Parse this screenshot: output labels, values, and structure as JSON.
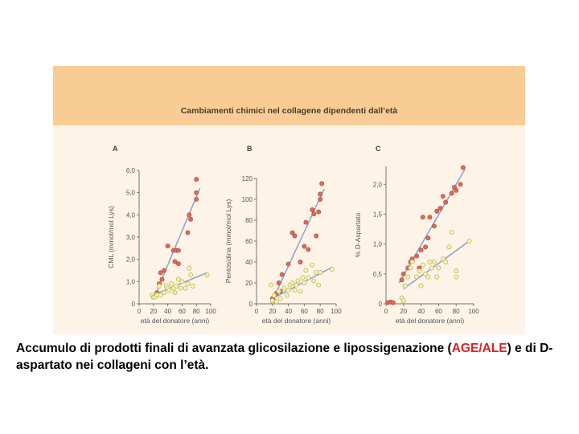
{
  "figure": {
    "title": "Cambiamenti chimici nel collagene dipendenti dall’età",
    "colors": {
      "title_bar": "#f8cc94",
      "panel_bg": "#fdf3e6",
      "red_points": "#e06a58",
      "yellow_points": "#f4f3b0",
      "trend_lines": "#8ea6d6"
    }
  },
  "chart_data": [
    {
      "type": "scatter",
      "panel": "A",
      "ylabel": "CML (mmol/mol Lys)",
      "xlabel": "età del donatore (anni)",
      "xlim": [
        0,
        100
      ],
      "ylim": [
        0,
        6.0
      ],
      "xticks": [
        0,
        20,
        40,
        60,
        80,
        100
      ],
      "yticks": [
        0,
        1.0,
        2.0,
        3.0,
        4.0,
        5.0,
        6.0
      ],
      "ytick_labels": [
        "0",
        "1,0",
        "2,0",
        "3,0",
        "4,0",
        "5,0",
        "6,0"
      ],
      "series": [
        {
          "color": "red",
          "points": [
            [
              20,
              0.3
            ],
            [
              25,
              0.5
            ],
            [
              28,
              0.9
            ],
            [
              30,
              1.4
            ],
            [
              32,
              1.1
            ],
            [
              35,
              1.5
            ],
            [
              40,
              2.6
            ],
            [
              48,
              2.4
            ],
            [
              50,
              1.9
            ],
            [
              52,
              2.4
            ],
            [
              55,
              2.4
            ],
            [
              55,
              1.8
            ],
            [
              68,
              3.2
            ],
            [
              70,
              4.0
            ],
            [
              72,
              3.8
            ],
            [
              80,
              5.6
            ],
            [
              80,
              4.7
            ],
            [
              80,
              5.0
            ]
          ]
        },
        {
          "color": "yellow",
          "points": [
            [
              18,
              0.4
            ],
            [
              20,
              0.3
            ],
            [
              22,
              0.3
            ],
            [
              25,
              0.4
            ],
            [
              28,
              0.8
            ],
            [
              30,
              0.4
            ],
            [
              35,
              0.5
            ],
            [
              38,
              0.8
            ],
            [
              40,
              0.7
            ],
            [
              42,
              0.6
            ],
            [
              45,
              0.9
            ],
            [
              48,
              0.7
            ],
            [
              50,
              0.5
            ],
            [
              52,
              0.8
            ],
            [
              55,
              1.1
            ],
            [
              58,
              0.7
            ],
            [
              60,
              1.0
            ],
            [
              65,
              0.7
            ],
            [
              68,
              0.9
            ],
            [
              70,
              1.6
            ],
            [
              72,
              1.3
            ],
            [
              75,
              0.8
            ],
            [
              95,
              1.3
            ]
          ]
        }
      ],
      "trend_lines": [
        {
          "color": "red",
          "from": [
            20,
            0.2
          ],
          "to": [
            85,
            5.2
          ]
        },
        {
          "color": "yellow",
          "from": [
            20,
            0.4
          ],
          "to": [
            95,
            1.4
          ]
        }
      ]
    },
    {
      "type": "scatter",
      "panel": "B",
      "ylabel": "Pentosidina (mmol/mol Lys)",
      "xlabel": "età del donatore (anni)",
      "xlim": [
        0,
        100
      ],
      "ylim": [
        0,
        120
      ],
      "xticks": [
        0,
        20,
        40,
        60,
        80,
        100
      ],
      "yticks": [
        0,
        20,
        40,
        60,
        80,
        100,
        120
      ],
      "ytick_labels": [
        "0",
        "20",
        "40",
        "60",
        "80",
        "100",
        "120"
      ],
      "series": [
        {
          "color": "red",
          "points": [
            [
              20,
              5
            ],
            [
              22,
              3
            ],
            [
              25,
              10
            ],
            [
              28,
              20
            ],
            [
              30,
              12
            ],
            [
              32,
              28
            ],
            [
              40,
              38
            ],
            [
              45,
              68
            ],
            [
              48,
              65
            ],
            [
              55,
              40
            ],
            [
              60,
              55
            ],
            [
              62,
              78
            ],
            [
              65,
              52
            ],
            [
              70,
              90
            ],
            [
              72,
              86
            ],
            [
              75,
              65
            ],
            [
              78,
              88
            ],
            [
              80,
              100
            ],
            [
              80,
              105
            ],
            [
              82,
              115
            ]
          ]
        },
        {
          "color": "yellow",
          "points": [
            [
              18,
              18
            ],
            [
              20,
              3
            ],
            [
              22,
              8
            ],
            [
              25,
              2
            ],
            [
              28,
              12
            ],
            [
              30,
              5
            ],
            [
              35,
              15
            ],
            [
              38,
              8
            ],
            [
              40,
              13
            ],
            [
              42,
              18
            ],
            [
              45,
              20
            ],
            [
              48,
              13
            ],
            [
              50,
              18
            ],
            [
              52,
              22
            ],
            [
              55,
              12
            ],
            [
              58,
              25
            ],
            [
              60,
              20
            ],
            [
              62,
              32
            ],
            [
              65,
              25
            ],
            [
              70,
              37
            ],
            [
              72,
              22
            ],
            [
              75,
              30
            ],
            [
              78,
              18
            ],
            [
              80,
              30
            ],
            [
              95,
              33
            ]
          ]
        }
      ],
      "trend_lines": [
        {
          "color": "red",
          "from": [
            18,
            0
          ],
          "to": [
            85,
            110
          ]
        },
        {
          "color": "yellow",
          "from": [
            20,
            5
          ],
          "to": [
            95,
            35
          ]
        }
      ]
    },
    {
      "type": "scatter",
      "panel": "C",
      "ylabel": "% D-Aspartato",
      "xlabel": "età del donatore (anni)",
      "xlim": [
        0,
        100
      ],
      "ylim": [
        0,
        2.3
      ],
      "xticks": [
        0,
        20,
        40,
        60,
        80,
        100
      ],
      "yticks": [
        0,
        0.5,
        1.0,
        1.5,
        2.0
      ],
      "ytick_labels": [
        "0",
        "0,5",
        "1,0",
        "1,5",
        "2,0"
      ],
      "series": [
        {
          "color": "red",
          "points": [
            [
              2,
              0.02
            ],
            [
              5,
              0.03
            ],
            [
              8,
              0.02
            ],
            [
              18,
              0.4
            ],
            [
              20,
              0.5
            ],
            [
              25,
              0.6
            ],
            [
              28,
              0.7
            ],
            [
              30,
              0.75
            ],
            [
              35,
              0.8
            ],
            [
              38,
              0.6
            ],
            [
              40,
              0.9
            ],
            [
              42,
              1.45
            ],
            [
              45,
              0.95
            ],
            [
              48,
              1.1
            ],
            [
              50,
              1.45
            ],
            [
              55,
              1.3
            ],
            [
              58,
              1.55
            ],
            [
              62,
              1.6
            ],
            [
              65,
              1.8
            ],
            [
              68,
              1.7
            ],
            [
              75,
              1.85
            ],
            [
              78,
              1.95
            ],
            [
              80,
              1.9
            ],
            [
              85,
              2.0
            ],
            [
              88,
              2.28
            ]
          ]
        },
        {
          "color": "yellow",
          "points": [
            [
              18,
              0.1
            ],
            [
              20,
              0.05
            ],
            [
              22,
              0.3
            ],
            [
              25,
              0.45
            ],
            [
              28,
              0.6
            ],
            [
              30,
              0.7
            ],
            [
              35,
              0.45
            ],
            [
              38,
              0.55
            ],
            [
              40,
              0.3
            ],
            [
              42,
              0.65
            ],
            [
              45,
              0.5
            ],
            [
              48,
              0.45
            ],
            [
              50,
              0.7
            ],
            [
              52,
              0.6
            ],
            [
              55,
              0.7
            ],
            [
              58,
              0.45
            ],
            [
              60,
              0.6
            ],
            [
              65,
              0.75
            ],
            [
              68,
              0.7
            ],
            [
              72,
              0.95
            ],
            [
              75,
              1.2
            ],
            [
              80,
              0.55
            ],
            [
              80,
              0.45
            ],
            [
              95,
              1.05
            ]
          ]
        }
      ],
      "trend_lines": [
        {
          "color": "red",
          "from": [
            15,
            0.35
          ],
          "to": [
            90,
            2.25
          ]
        },
        {
          "color": "yellow",
          "from": [
            20,
            0.25
          ],
          "to": [
            95,
            1.05
          ]
        }
      ]
    }
  ],
  "caption": {
    "before": "Accumulo di prodotti finali di avanzata glicosilazione e lipossigenazione (",
    "highlight": "AGE/ALE",
    "after": ") e di D-aspartato nei collageni con l’età."
  }
}
